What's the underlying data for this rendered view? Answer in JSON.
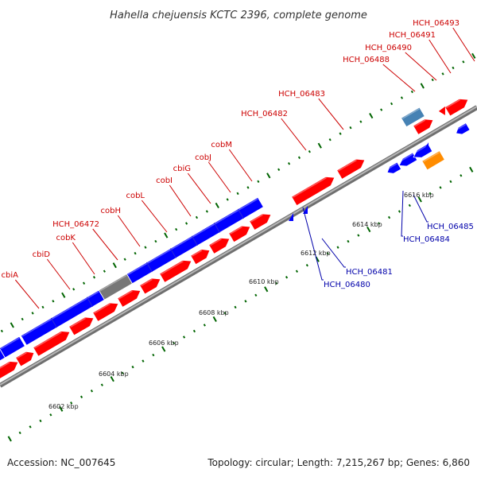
{
  "title": "Hahella chejuensis KCTC 2396, complete genome",
  "footer": {
    "accession": "Accession: NC_007645",
    "summary": "Topology: circular; Length: 7,215,267 bp; Genes: 6,860"
  },
  "colors": {
    "forward_gene": "#ff0000",
    "reverse_gene": "#0000ff",
    "unknown_gene": "#777777",
    "steelblue_gene": "#4682b4",
    "orange_gene": "#ff8c00",
    "backbone": "#999999",
    "tick": "#006400",
    "forward_label": "#cc0000",
    "reverse_label": "#0000aa"
  },
  "forward_labels": [
    "cbiA",
    "cbiD",
    "cobK",
    "HCH_06472",
    "cobH",
    "cobL",
    "cobI",
    "cbiG",
    "cobJ",
    "cobM",
    "HCH_06482",
    "HCH_06483",
    "HCH_06488",
    "HCH_06490",
    "HCH_06491",
    "HCH_06493"
  ],
  "reverse_labels": [
    "HCH_06480",
    "HCH_06481",
    "HCH_06484",
    "HCH_06485"
  ],
  "kbp_labels": [
    "6602 kbp",
    "6604 kbp",
    "6606 kbp",
    "6608 kbp",
    "6610 kbp",
    "6612 kbp",
    "6614 kbp",
    "6616 kbp"
  ]
}
